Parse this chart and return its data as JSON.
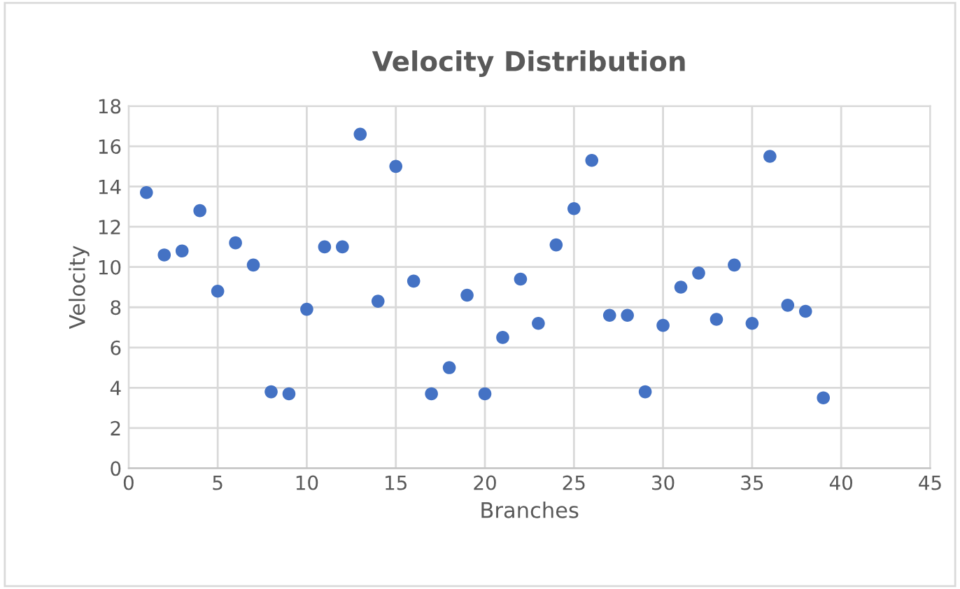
{
  "chart_data": {
    "type": "scatter",
    "title": "Velocity Distribution",
    "xlabel": "Branches",
    "ylabel": "Velocity",
    "x": [
      1,
      2,
      3,
      4,
      5,
      6,
      7,
      8,
      9,
      10,
      11,
      12,
      13,
      14,
      15,
      16,
      17,
      18,
      19,
      20,
      21,
      22,
      23,
      24,
      25,
      26,
      27,
      28,
      29,
      30,
      31,
      32,
      33,
      34,
      35,
      36,
      37,
      38,
      39
    ],
    "values": [
      13.7,
      10.6,
      10.8,
      12.8,
      8.8,
      11.2,
      10.1,
      3.8,
      3.7,
      7.9,
      11.0,
      11.0,
      16.6,
      8.3,
      15.0,
      9.3,
      3.7,
      5.0,
      8.6,
      3.7,
      6.5,
      9.4,
      7.2,
      11.1,
      12.9,
      15.3,
      7.6,
      7.6,
      3.8,
      7.1,
      9.0,
      9.7,
      7.4,
      10.1,
      7.2,
      15.5,
      8.1,
      7.8,
      3.5
    ],
    "color": "#4472c4",
    "marker": "circle",
    "xlim": [
      0,
      45
    ],
    "xticks": [
      0,
      5,
      10,
      15,
      20,
      25,
      30,
      35,
      40,
      45
    ],
    "ylim": [
      0,
      18
    ],
    "yticks": [
      0,
      2,
      4,
      6,
      8,
      10,
      12,
      14,
      16,
      18
    ],
    "grid": true,
    "legend": false
  }
}
